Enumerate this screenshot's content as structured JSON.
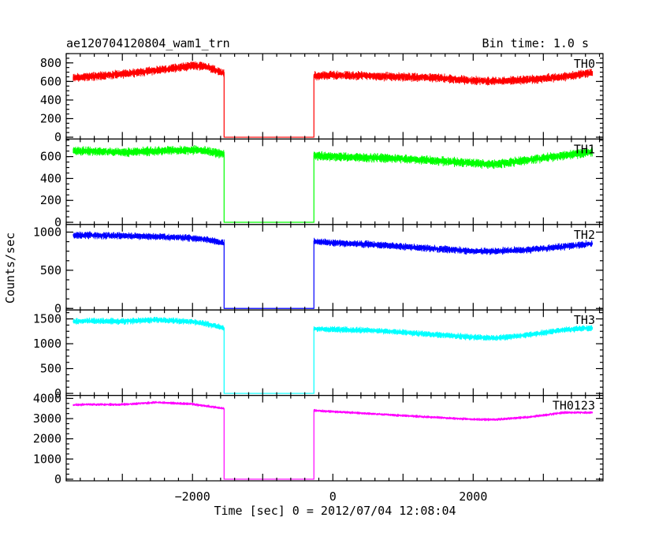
{
  "chart_data": {
    "type": "line",
    "title": "ae120704120804_wam1_trn",
    "subtitle": "Bin time: 1.0 s",
    "xlabel": "Time [sec] 0 = 2012/07/04 12:08:04",
    "ylabel": "Counts/sec",
    "xlim": [
      -3800,
      3850
    ],
    "x_ticks": [
      -2000,
      0,
      2000
    ],
    "gap": [
      -1550,
      -270
    ],
    "x": [
      -3700,
      -3500,
      -3000,
      -2500,
      -2000,
      -1800,
      -1550,
      -1549,
      -271,
      -270,
      0,
      500,
      1000,
      1500,
      2000,
      2300,
      2800,
      3300,
      3700
    ],
    "panels": [
      {
        "name": "TH0",
        "color": "#ff0000",
        "ylim": [
          -20,
          900
        ],
        "y_ticks": [
          0,
          200,
          400,
          600,
          800
        ],
        "values": [
          640,
          650,
          680,
          720,
          770,
          760,
          690,
          0,
          0,
          660,
          670,
          660,
          650,
          640,
          610,
          600,
          620,
          650,
          700
        ],
        "noise": 45
      },
      {
        "name": "TH1",
        "color": "#00ff00",
        "ylim": [
          -20,
          760
        ],
        "y_ticks": [
          0,
          200,
          400,
          600
        ],
        "values": [
          650,
          650,
          640,
          650,
          660,
          650,
          620,
          0,
          0,
          610,
          600,
          590,
          580,
          560,
          540,
          530,
          570,
          610,
          640
        ],
        "noise": 40
      },
      {
        "name": "TH2",
        "color": "#0000ff",
        "ylim": [
          -20,
          1100
        ],
        "y_ticks": [
          0,
          500,
          1000
        ],
        "values": [
          960,
          960,
          950,
          940,
          920,
          900,
          860,
          0,
          0,
          880,
          860,
          840,
          810,
          780,
          750,
          750,
          770,
          810,
          850
        ],
        "noise": 45
      },
      {
        "name": "TH3",
        "color": "#00ffff",
        "ylim": [
          -40,
          1680
        ],
        "y_ticks": [
          0,
          500,
          1000,
          1500
        ],
        "values": [
          1450,
          1460,
          1450,
          1480,
          1440,
          1400,
          1320,
          0,
          0,
          1300,
          1290,
          1270,
          1230,
          1180,
          1130,
          1110,
          1180,
          1280,
          1320
        ],
        "noise": 60
      },
      {
        "name": "TH0123",
        "color": "#ff00ff",
        "ylim": [
          -80,
          4150
        ],
        "y_ticks": [
          0,
          1000,
          2000,
          3000,
          4000
        ],
        "values": [
          3680,
          3700,
          3700,
          3800,
          3720,
          3620,
          3500,
          0,
          0,
          3400,
          3350,
          3250,
          3150,
          3050,
          2960,
          2950,
          3080,
          3300,
          3300
        ],
        "noise": 70
      }
    ]
  }
}
